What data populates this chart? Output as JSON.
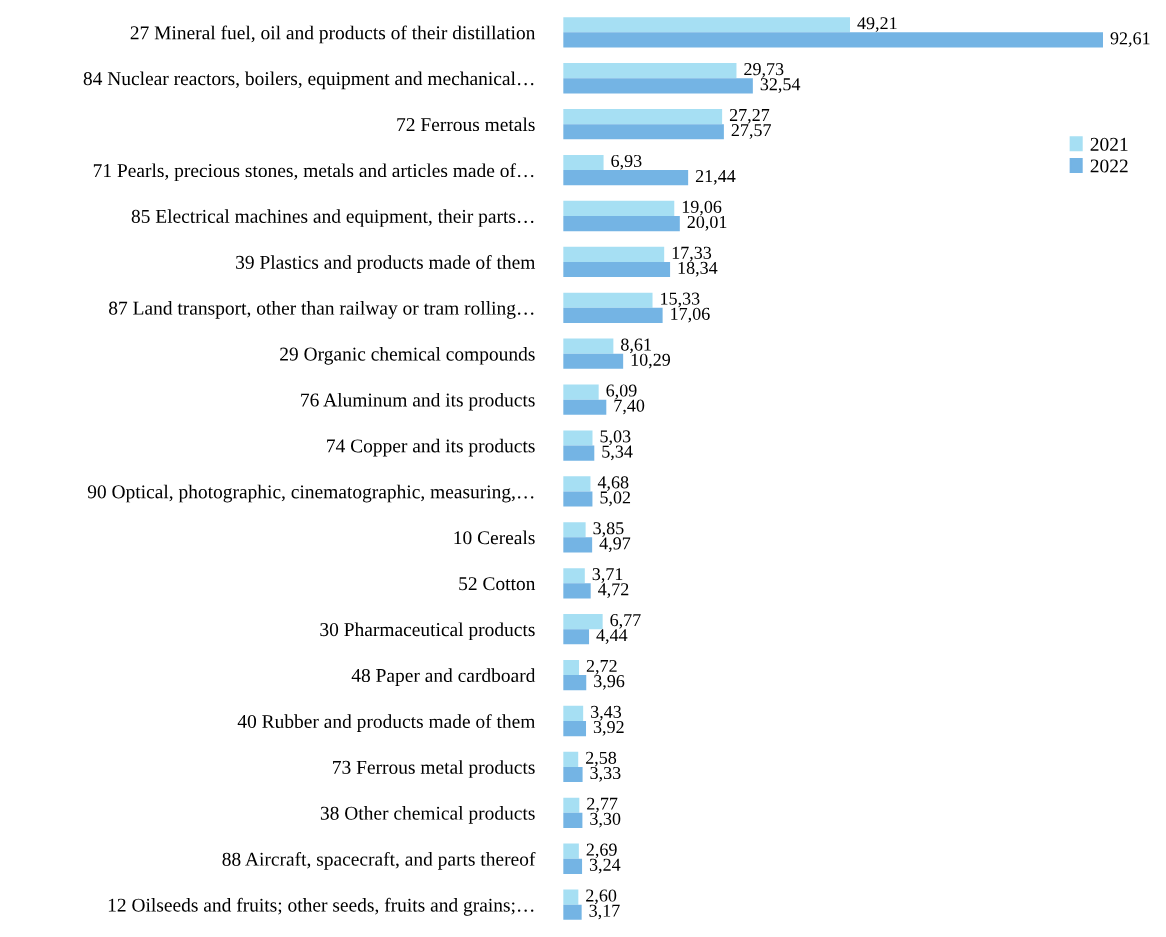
{
  "chart_data": {
    "type": "bar",
    "orientation": "horizontal",
    "tick_labels": "y",
    "legend": "right",
    "grid": false,
    "categories": [
      "27 Mineral fuel, oil and products of their distillation",
      "84 Nuclear reactors, boilers, equipment and mechanical…",
      "72 Ferrous metals",
      "71 Pearls, precious stones, metals and articles made of…",
      "85 Electrical machines and equipment, their parts…",
      "39 Plastics and products made of them",
      "87 Land transport, other than railway or tram rolling…",
      "29 Organic chemical compounds",
      "76 Aluminum and its products",
      "74 Copper and its products",
      "90 Optical, photographic, cinematographic, measuring,…",
      "10 Cereals",
      "52 Cotton",
      "30 Pharmaceutical products",
      "48 Paper and cardboard",
      "40 Rubber and products made of them",
      "73 Ferrous metal products",
      "38 Other chemical products",
      "88 Aircraft, spacecraft, and parts thereof",
      "12 Oilseeds and fruits; other seeds, fruits and grains;…"
    ],
    "series": [
      {
        "name": "2021",
        "color": "#a6dff3",
        "values": [
          49.21,
          29.73,
          27.27,
          6.93,
          19.06,
          17.33,
          15.33,
          8.61,
          6.09,
          5.03,
          4.68,
          3.85,
          3.71,
          6.77,
          2.72,
          3.43,
          2.58,
          2.77,
          2.69,
          2.6
        ],
        "value_labels": [
          "49,21",
          "29,73",
          "27,27",
          "6,93",
          "19,06",
          "17,33",
          "15,33",
          "8,61",
          "6,09",
          "5,03",
          "4,68",
          "3,85",
          "3,71",
          "6,77",
          "2,72",
          "3,43",
          "2,58",
          "2,77",
          "2,69",
          "2,60"
        ]
      },
      {
        "name": "2022",
        "color": "#74b4e4",
        "values": [
          92.61,
          32.54,
          27.57,
          21.44,
          20.01,
          18.34,
          17.06,
          10.29,
          7.4,
          5.34,
          5.02,
          4.97,
          4.72,
          4.44,
          3.96,
          3.92,
          3.33,
          3.3,
          3.24,
          3.17
        ],
        "value_labels": [
          "92,61",
          "32,54",
          "27,57",
          "21,44",
          "20,01",
          "18,34",
          "17,06",
          "10,29",
          "7,40",
          "5,34",
          "5,02",
          "4,97",
          "4,72",
          "4,44",
          "3,96",
          "3,92",
          "3,33",
          "3,30",
          "3,24",
          "3,17"
        ]
      }
    ]
  }
}
